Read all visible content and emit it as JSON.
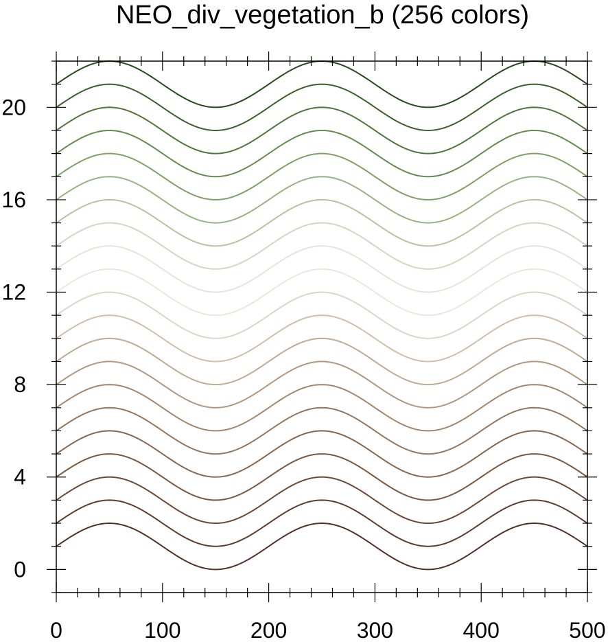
{
  "chart_data": {
    "type": "line",
    "title": "NEO_div_vegetation_b (256 colors)",
    "xlabel": "",
    "ylabel": "",
    "xlim": [
      0,
      500
    ],
    "ylim": [
      -1,
      22
    ],
    "x_ticks": [
      0,
      100,
      200,
      300,
      400,
      500
    ],
    "y_ticks": [
      0,
      4,
      8,
      12,
      16,
      20
    ],
    "grid": false,
    "curve": "y = offset + 1 + sin(2*pi*(x - 50)/200 + pi/2)",
    "series": [
      {
        "offset": 0,
        "color": "#513024"
      },
      {
        "offset": 1,
        "color": "#5e3b2b"
      },
      {
        "offset": 2,
        "color": "#6c4834"
      },
      {
        "offset": 3,
        "color": "#7a573f"
      },
      {
        "offset": 4,
        "color": "#87664d"
      },
      {
        "offset": 5,
        "color": "#94765c"
      },
      {
        "offset": 6,
        "color": "#a2876d"
      },
      {
        "offset": 7,
        "color": "#b0987f"
      },
      {
        "offset": 8,
        "color": "#bfaa93"
      },
      {
        "offset": 9,
        "color": "#cfbea9"
      },
      {
        "offset": 10,
        "color": "#dfd4c6"
      },
      {
        "offset": 11,
        "color": "#e9e7e2"
      },
      {
        "offset": 12,
        "color": "#e3e6dc"
      },
      {
        "offset": 13,
        "color": "#cfd8c0"
      },
      {
        "offset": 14,
        "color": "#b3c59f"
      },
      {
        "offset": 15,
        "color": "#98b382"
      },
      {
        "offset": 16,
        "color": "#7fa068"
      },
      {
        "offset": 17,
        "color": "#668b50"
      },
      {
        "offset": 18,
        "color": "#4f753b"
      },
      {
        "offset": 19,
        "color": "#3a5f2a"
      },
      {
        "offset": 20,
        "color": "#264a1b"
      }
    ]
  }
}
